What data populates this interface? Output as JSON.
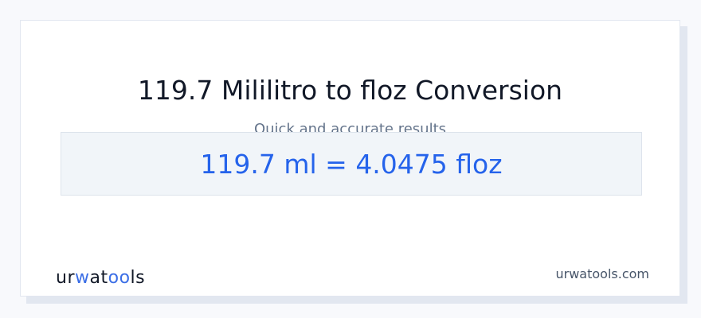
{
  "title": "119.7 Mililitro to floz Conversion",
  "subtitle": "Quick and accurate results",
  "result": "119.7 ml = 4.0475 floz",
  "logo": {
    "text": "urwatools",
    "parts": [
      "ur",
      "w",
      "at",
      "oo",
      "ls"
    ]
  },
  "site": "urwatools.com",
  "colors": {
    "accent": "#2563eb",
    "logo_accent": "#3b6ee6"
  }
}
